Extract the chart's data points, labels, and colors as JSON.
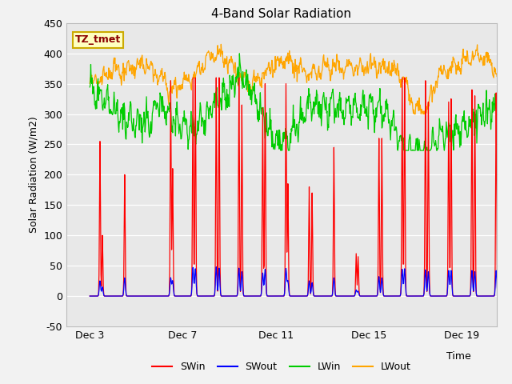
{
  "title": "4-Band Solar Radiation",
  "xlabel": "Time",
  "ylabel": "Solar Radiation (W/m2)",
  "annotation": "TZ_tmet",
  "ylim": [
    -50,
    450
  ],
  "xlim": [
    2.0,
    20.5
  ],
  "legend": [
    "SWin",
    "SWout",
    "LWin",
    "LWout"
  ],
  "legend_colors": [
    "#ff0000",
    "#0000ff",
    "#00cc00",
    "#ffa500"
  ],
  "bg_color": "#e8e8e8",
  "fig_color": "#f2f2f2",
  "xtick_labels": [
    "Dec 3",
    "Dec 7",
    "Dec 11",
    "Dec 15",
    "Dec 19"
  ],
  "xtick_positions": [
    3,
    7,
    11,
    15,
    19
  ],
  "ytick_positions": [
    -50,
    0,
    50,
    100,
    150,
    200,
    250,
    300,
    350,
    400,
    450
  ]
}
